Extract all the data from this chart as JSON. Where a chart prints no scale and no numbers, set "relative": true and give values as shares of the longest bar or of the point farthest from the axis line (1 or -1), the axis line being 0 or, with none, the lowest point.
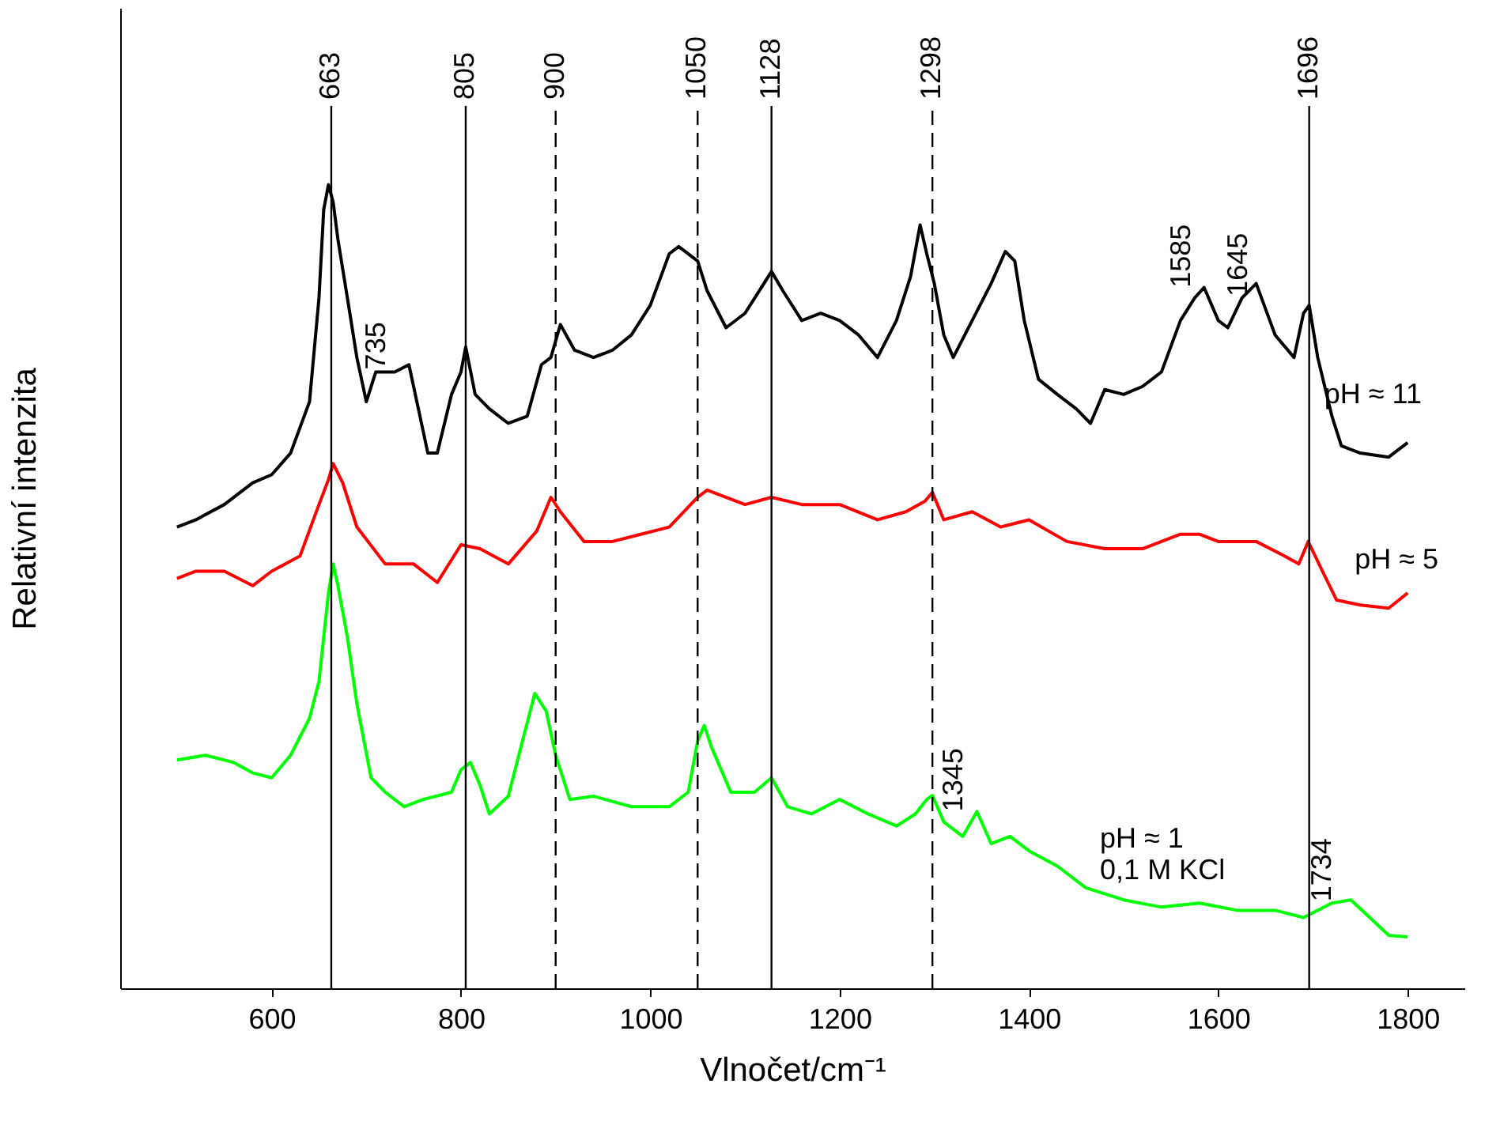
{
  "chart_data": {
    "type": "line",
    "relative": true,
    "xlabel": "Vlnočet/cm⁻¹",
    "ylabel": "Relativní intenzita",
    "xlim": [
      440,
      1860
    ],
    "xticks": [
      600,
      800,
      {
        "value": 1000,
        "label": "1000"
      },
      {
        "value": 1200,
        "label": "1200"
      },
      {
        "value": 1400,
        "label": "1400"
      },
      {
        "value": 1600,
        "label": "1600"
      },
      {
        "value": 1800,
        "label": "1800"
      }
    ],
    "line_style": "solid",
    "marker": "none",
    "series": [
      {
        "name": "pH ≈ 11",
        "color": "#000000",
        "x": [
          500,
          520,
          550,
          580,
          600,
          620,
          640,
          650,
          655,
          660,
          665,
          670,
          680,
          690,
          700,
          710,
          730,
          745,
          755,
          765,
          775,
          790,
          800,
          805,
          815,
          830,
          850,
          870,
          885,
          895,
          905,
          920,
          940,
          960,
          980,
          1000,
          1020,
          1030,
          1050,
          1060,
          1080,
          1100,
          1120,
          1128,
          1140,
          1160,
          1180,
          1200,
          1220,
          1240,
          1260,
          1275,
          1285,
          1292,
          1300,
          1310,
          1320,
          1340,
          1360,
          1375,
          1385,
          1395,
          1410,
          1430,
          1450,
          1465,
          1480,
          1500,
          1520,
          1540,
          1560,
          1575,
          1585,
          1600,
          1610,
          1625,
          1640,
          1660,
          1680,
          1690,
          1696,
          1705,
          1720,
          1730,
          1750,
          1780,
          1800
        ],
        "values": [
          0.574,
          0.583,
          0.602,
          0.629,
          0.639,
          0.666,
          0.73,
          0.859,
          0.969,
          1.0,
          0.978,
          0.932,
          0.859,
          0.785,
          0.73,
          0.767,
          0.767,
          0.776,
          0.721,
          0.666,
          0.666,
          0.739,
          0.767,
          0.798,
          0.739,
          0.721,
          0.703,
          0.712,
          0.776,
          0.785,
          0.826,
          0.794,
          0.785,
          0.794,
          0.813,
          0.85,
          0.914,
          0.923,
          0.905,
          0.868,
          0.822,
          0.84,
          0.877,
          0.892,
          0.868,
          0.831,
          0.84,
          0.831,
          0.813,
          0.785,
          0.831,
          0.886,
          0.95,
          0.914,
          0.877,
          0.813,
          0.785,
          0.831,
          0.877,
          0.917,
          0.905,
          0.831,
          0.758,
          0.739,
          0.721,
          0.703,
          0.745,
          0.739,
          0.749,
          0.767,
          0.831,
          0.859,
          0.872,
          0.831,
          0.822,
          0.859,
          0.877,
          0.813,
          0.785,
          0.84,
          0.85,
          0.785,
          0.712,
          0.675,
          0.666,
          0.661,
          0.679
        ]
      },
      {
        "name": "pH ≈ 5",
        "color": "#ff0000",
        "x": [
          500,
          520,
          550,
          580,
          600,
          630,
          650,
          660,
          665,
          675,
          690,
          720,
          750,
          775,
          800,
          820,
          850,
          880,
          895,
          905,
          930,
          960,
          990,
          1020,
          1050,
          1060,
          1100,
          1128,
          1160,
          1200,
          1240,
          1270,
          1290,
          1298,
          1310,
          1340,
          1370,
          1400,
          1440,
          1480,
          1520,
          1560,
          1580,
          1600,
          1640,
          1670,
          1685,
          1695,
          1710,
          1725,
          1750,
          1780,
          1800
        ],
        "values": [
          0.51,
          0.519,
          0.519,
          0.501,
          0.519,
          0.538,
          0.602,
          0.633,
          0.653,
          0.629,
          0.574,
          0.528,
          0.528,
          0.505,
          0.552,
          0.547,
          0.528,
          0.569,
          0.611,
          0.593,
          0.556,
          0.556,
          0.565,
          0.574,
          0.611,
          0.62,
          0.602,
          0.611,
          0.602,
          0.602,
          0.583,
          0.593,
          0.606,
          0.617,
          0.583,
          0.593,
          0.574,
          0.583,
          0.556,
          0.547,
          0.547,
          0.565,
          0.565,
          0.556,
          0.556,
          0.538,
          0.528,
          0.556,
          0.519,
          0.483,
          0.477,
          0.473,
          0.492
        ]
      },
      {
        "name": "pH ≈ 1\n0,1 M KCl",
        "color": "#00ff00",
        "x": [
          500,
          530,
          560,
          580,
          600,
          620,
          640,
          650,
          660,
          665,
          670,
          680,
          690,
          705,
          720,
          740,
          760,
          790,
          800,
          810,
          820,
          830,
          850,
          865,
          878,
          890,
          900,
          915,
          940,
          980,
          1020,
          1040,
          1050,
          1057,
          1065,
          1085,
          1110,
          1128,
          1145,
          1170,
          1200,
          1230,
          1260,
          1280,
          1292,
          1298,
          1310,
          1330,
          1345,
          1360,
          1380,
          1400,
          1430,
          1460,
          1500,
          1540,
          1580,
          1620,
          1660,
          1690,
          1720,
          1740,
          1760,
          1780,
          1800
        ],
        "values": [
          0.284,
          0.29,
          0.281,
          0.268,
          0.262,
          0.29,
          0.336,
          0.382,
          0.492,
          0.528,
          0.501,
          0.437,
          0.354,
          0.262,
          0.244,
          0.226,
          0.235,
          0.244,
          0.272,
          0.281,
          0.253,
          0.217,
          0.239,
          0.308,
          0.367,
          0.345,
          0.29,
          0.235,
          0.239,
          0.226,
          0.226,
          0.244,
          0.308,
          0.327,
          0.299,
          0.244,
          0.244,
          0.262,
          0.226,
          0.217,
          0.235,
          0.217,
          0.202,
          0.217,
          0.235,
          0.24,
          0.207,
          0.189,
          0.22,
          0.18,
          0.189,
          0.171,
          0.152,
          0.125,
          0.11,
          0.101,
          0.106,
          0.097,
          0.097,
          0.088,
          0.106,
          0.11,
          0.088,
          0.066,
          0.064
        ]
      }
    ],
    "ref_lines": [
      {
        "axis": "x",
        "value": 663,
        "label": "663",
        "line_style": "solid"
      },
      {
        "axis": "x",
        "value": 805,
        "label": "805",
        "line_style": "solid"
      },
      {
        "axis": "x",
        "value": 900,
        "label": "900",
        "line_style": "dashed"
      },
      {
        "axis": "x",
        "value": 1050,
        "label": "1050",
        "line_style": "dashed"
      },
      {
        "axis": "x",
        "value": 1128,
        "label": "1128",
        "line_style": "solid"
      },
      {
        "axis": "x",
        "value": 1298,
        "label": "1298",
        "line_style": "dashed"
      },
      {
        "axis": "x",
        "value": 1696,
        "label": "1696",
        "line_style": "solid"
      }
    ],
    "annotations": [
      {
        "text": "735",
        "x": 735,
        "y": 0.77
      },
      {
        "text": "1585",
        "x": 1585,
        "y": 0.872
      },
      {
        "text": "1645",
        "x": 1645,
        "y": 0.861
      },
      {
        "text": "1345",
        "x": 1345,
        "y": 0.22
      },
      {
        "text": "1734",
        "x": 1734,
        "y": 0.108
      }
    ]
  }
}
